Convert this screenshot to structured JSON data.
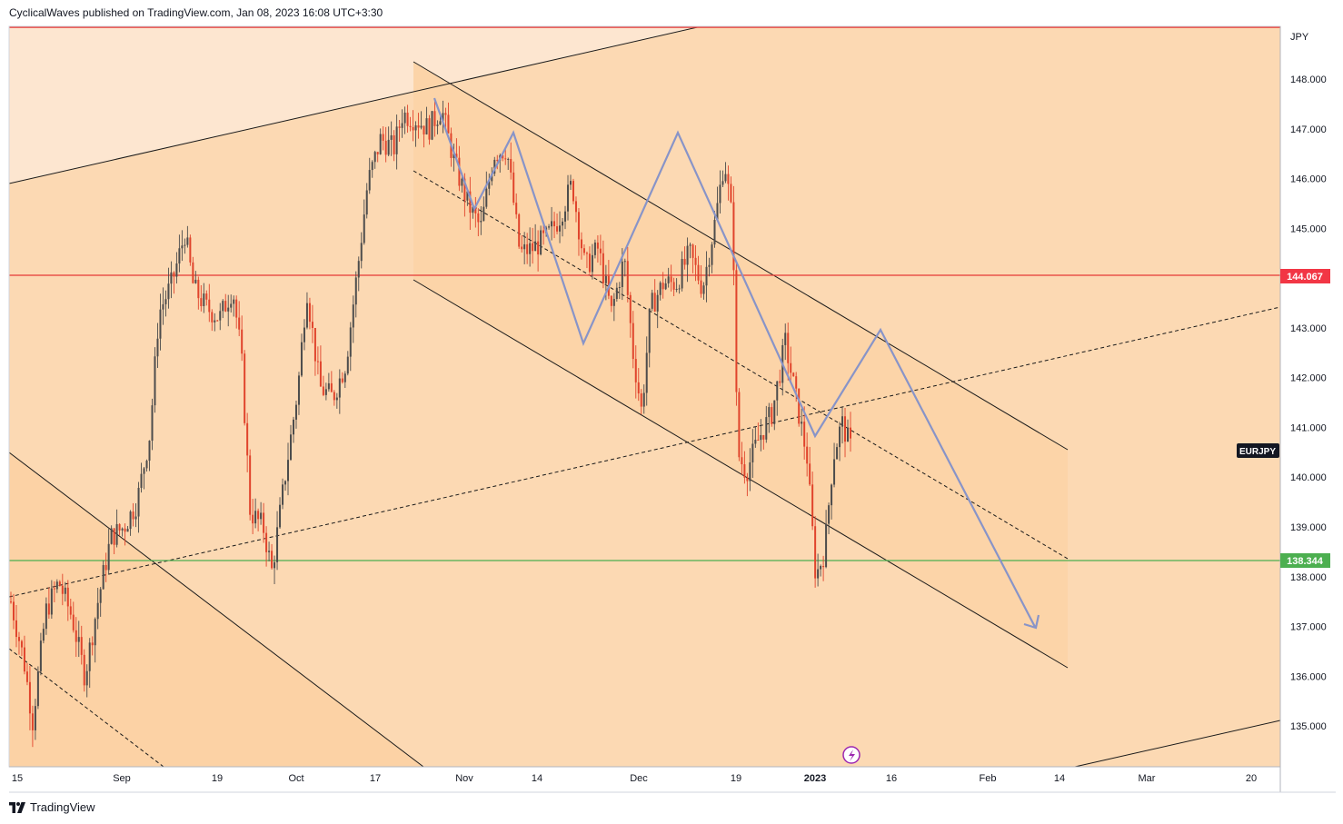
{
  "header": {
    "text": "CyclicalWaves published on TradingView.com, Jan 08, 2023 16:08 UTC+3:30"
  },
  "footer": {
    "brand": "TradingView",
    "logo_icon": "tradingview-logo-icon"
  },
  "colors": {
    "background": "#fcd9b3",
    "up_candle": "#4c4c4c",
    "down_candle": "#e0442c",
    "resistance_line": "#e53935",
    "support_line": "#4caf50",
    "projection": "#8894c8",
    "price_tag_red": "#f23645",
    "price_tag_green": "#4caf50"
  },
  "chart_data": {
    "type": "candlestick",
    "symbol": "EURJPY",
    "currency": "JPY",
    "y_ticks": [
      "135.000",
      "136.000",
      "137.000",
      "138.000",
      "139.000",
      "140.000",
      "141.000",
      "142.000",
      "143.000",
      "144.000",
      "145.000",
      "146.000",
      "147.000",
      "148.000"
    ],
    "ylim": [
      134.18,
      149.06
    ],
    "x_ticks": [
      "15",
      "Sep",
      "19",
      "Oct",
      "17",
      "Nov",
      "14",
      "Dec",
      "19",
      "2023",
      "16",
      "Feb",
      "14",
      "Mar",
      "20"
    ],
    "x_ticks_bold": [
      "2023"
    ],
    "horizontal_levels": [
      {
        "value": 144.067,
        "label": "144.067",
        "color": "red"
      },
      {
        "value": 138.344,
        "label": "138.344",
        "color": "green"
      }
    ],
    "symbol_label": "EURJPY",
    "last_price_approx": 140.5,
    "price_path": [
      {
        "t": 0,
        "p": 137.5
      },
      {
        "t": 3,
        "p": 136.3
      },
      {
        "t": 5,
        "p": 135.1
      },
      {
        "t": 8,
        "p": 137.3
      },
      {
        "t": 11,
        "p": 137.9
      },
      {
        "t": 14,
        "p": 137.2
      },
      {
        "t": 17,
        "p": 136.0
      },
      {
        "t": 20,
        "p": 137.5
      },
      {
        "t": 23,
        "p": 138.8
      },
      {
        "t": 26,
        "p": 139.0
      },
      {
        "t": 29,
        "p": 139.5
      },
      {
        "t": 32,
        "p": 140.9
      },
      {
        "t": 34,
        "p": 143.3
      },
      {
        "t": 37,
        "p": 143.9
      },
      {
        "t": 40,
        "p": 144.9
      },
      {
        "t": 42,
        "p": 143.8
      },
      {
        "t": 45,
        "p": 143.4
      },
      {
        "t": 48,
        "p": 143.2
      },
      {
        "t": 51,
        "p": 143.8
      },
      {
        "t": 53,
        "p": 142.4
      },
      {
        "t": 55,
        "p": 139.3
      },
      {
        "t": 58,
        "p": 139.0
      },
      {
        "t": 60,
        "p": 138.1
      },
      {
        "t": 63,
        "p": 140.0
      },
      {
        "t": 66,
        "p": 141.8
      },
      {
        "t": 68,
        "p": 143.8
      },
      {
        "t": 71,
        "p": 141.8
      },
      {
        "t": 74,
        "p": 141.6
      },
      {
        "t": 77,
        "p": 142.3
      },
      {
        "t": 80,
        "p": 144.4
      },
      {
        "t": 82,
        "p": 145.9
      },
      {
        "t": 85,
        "p": 146.8
      },
      {
        "t": 88,
        "p": 146.6
      },
      {
        "t": 90,
        "p": 147.3
      },
      {
        "t": 93,
        "p": 147.2
      },
      {
        "t": 96,
        "p": 147.0
      },
      {
        "t": 99,
        "p": 147.4
      },
      {
        "t": 102,
        "p": 146.3
      },
      {
        "t": 105,
        "p": 145.5
      },
      {
        "t": 108,
        "p": 145.0
      },
      {
        "t": 111,
        "p": 146.5
      },
      {
        "t": 114,
        "p": 146.6
      },
      {
        "t": 117,
        "p": 144.5
      },
      {
        "t": 120,
        "p": 144.6
      },
      {
        "t": 123,
        "p": 144.8
      },
      {
        "t": 126,
        "p": 145.2
      },
      {
        "t": 129,
        "p": 145.9
      },
      {
        "t": 132,
        "p": 144.2
      },
      {
        "t": 135,
        "p": 144.6
      },
      {
        "t": 138,
        "p": 143.3
      },
      {
        "t": 141,
        "p": 144.4
      },
      {
        "t": 143,
        "p": 142.5
      },
      {
        "t": 145,
        "p": 141.3
      },
      {
        "t": 147,
        "p": 143.4
      },
      {
        "t": 150,
        "p": 143.9
      },
      {
        "t": 153,
        "p": 143.9
      },
      {
        "t": 156,
        "p": 144.5
      },
      {
        "t": 159,
        "p": 143.8
      },
      {
        "t": 162,
        "p": 145.2
      },
      {
        "t": 164,
        "p": 146.4
      },
      {
        "t": 166,
        "p": 145.0
      },
      {
        "t": 167,
        "p": 140.5
      },
      {
        "t": 169,
        "p": 140.1
      },
      {
        "t": 172,
        "p": 140.8
      },
      {
        "t": 175,
        "p": 141.3
      },
      {
        "t": 178,
        "p": 142.7
      },
      {
        "t": 180,
        "p": 141.8
      },
      {
        "t": 183,
        "p": 140.4
      },
      {
        "t": 185,
        "p": 138.0
      },
      {
        "t": 187,
        "p": 138.5
      },
      {
        "t": 189,
        "p": 140.4
      },
      {
        "t": 191,
        "p": 141.1
      },
      {
        "t": 193,
        "p": 140.6
      }
    ],
    "channels": [
      {
        "name": "upper-rising-channel",
        "color": "#000000"
      },
      {
        "name": "descending-channel",
        "color": "#000000"
      },
      {
        "name": "lower-descending-channel",
        "color": "#000000"
      }
    ],
    "projection_path": [
      {
        "date": "Oct 24",
        "price": 147.7
      },
      {
        "date": "Nov 01",
        "price": 145.4
      },
      {
        "date": "Nov 10",
        "price": 147.0
      },
      {
        "date": "Nov 24",
        "price": 142.7
      },
      {
        "date": "Dec 09",
        "price": 147.0
      },
      {
        "date": "Dec 28",
        "price": 141.8
      },
      {
        "date": "Jan 03",
        "price": 140.9
      },
      {
        "date": "Jan 14",
        "price": 142.9
      },
      {
        "date": "Feb 10",
        "price": 137.0
      }
    ]
  }
}
